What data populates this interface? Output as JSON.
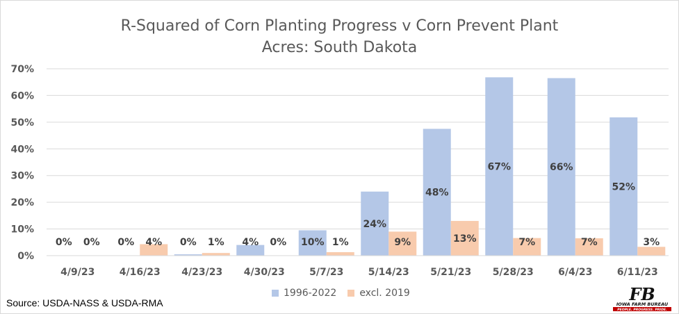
{
  "title_lines": [
    "R-Squared of Corn Planting Progress v Corn Prevent Plant",
    "Acres: South Dakota"
  ],
  "source": "Source: USDA-NASS & USDA-RMA",
  "logo": {
    "mark": "FB",
    "text_1": "IOWA FARM BUREAU",
    "text_2": "PEOPLE. PROGRESS. PRIDE."
  },
  "colors": {
    "series_1": "#B4C7E7",
    "series_2": "#F8CBAD",
    "logo_black": "#111111",
    "logo_red": "#C00000"
  },
  "chart_data": {
    "type": "bar",
    "title": "R-Squared of Corn Planting Progress v Corn Prevent Plant Acres: South Dakota",
    "categories": [
      "4/9/23",
      "4/16/23",
      "4/23/23",
      "4/30/23",
      "5/7/23",
      "5/14/23",
      "5/21/23",
      "5/28/23",
      "6/4/23",
      "6/11/23"
    ],
    "series": [
      {
        "name": "1996-2022",
        "values": [
          0,
          0,
          0.5,
          4,
          9.5,
          24,
          47.5,
          66.8,
          66.5,
          51.8
        ],
        "labels": [
          "0%",
          "0%",
          "0%",
          "4%",
          "10%",
          "24%",
          "48%",
          "67%",
          "66%",
          "52%"
        ]
      },
      {
        "name": "excl. 2019",
        "values": [
          0,
          4.3,
          1,
          0,
          1.3,
          9,
          13,
          6.6,
          6.5,
          3.3
        ],
        "labels": [
          "0%",
          "4%",
          "1%",
          "0%",
          "1%",
          "9%",
          "13%",
          "7%",
          "7%",
          "3%"
        ]
      }
    ],
    "ylim": [
      0,
      70
    ],
    "yticks": [
      "0%",
      "10%",
      "20%",
      "30%",
      "40%",
      "50%",
      "60%",
      "70%"
    ],
    "grid": true,
    "legend": "bottom"
  }
}
